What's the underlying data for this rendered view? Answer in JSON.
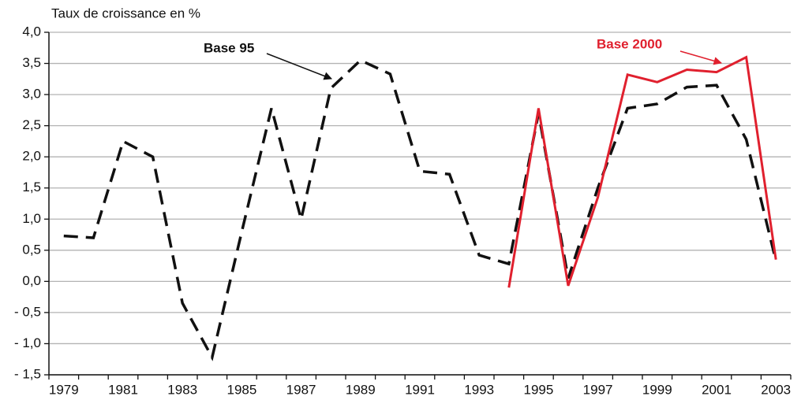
{
  "chart_data": {
    "type": "line",
    "y_axis_label": "Taux de croissance en %",
    "categories": [
      "1979",
      null,
      "1981",
      null,
      "1983",
      null,
      "1985",
      null,
      "1987",
      null,
      "1989",
      null,
      "1991",
      null,
      "1993",
      null,
      "1995",
      null,
      "1997",
      null,
      "1999",
      null,
      "2001",
      null,
      "2003"
    ],
    "series": [
      {
        "name": "Base 95",
        "color": "#111111",
        "dashed": true,
        "values": [
          0.73,
          0.7,
          2.25,
          2.0,
          -0.35,
          -1.22,
          0.8,
          2.78,
          1.0,
          3.1,
          3.55,
          3.33,
          1.77,
          1.72,
          0.42,
          0.28,
          2.7,
          0.05,
          1.5,
          2.78,
          2.85,
          3.12,
          3.15,
          2.28,
          0.33
        ]
      },
      {
        "name": "Base 2000",
        "color": "#e0202e",
        "dashed": false,
        "values": [
          null,
          null,
          null,
          null,
          null,
          null,
          null,
          null,
          null,
          null,
          null,
          null,
          null,
          null,
          null,
          -0.1,
          2.78,
          -0.07,
          1.35,
          3.32,
          3.2,
          3.4,
          3.36,
          3.6,
          0.35
        ]
      }
    ],
    "ylim": [
      -1.5,
      4.0
    ],
    "yticks": [
      {
        "value": -1.5,
        "label": "- 1,5"
      },
      {
        "value": -1.0,
        "label": "- 1,0"
      },
      {
        "value": -0.5,
        "label": "- 0,5"
      },
      {
        "value": 0.0,
        "label": "0,0"
      },
      {
        "value": 0.5,
        "label": "0,5"
      },
      {
        "value": 1.0,
        "label": "1,0"
      },
      {
        "value": 1.5,
        "label": "1,5"
      },
      {
        "value": 2.0,
        "label": "2,0"
      },
      {
        "value": 2.5,
        "label": "2,5"
      },
      {
        "value": 3.0,
        "label": "3,0"
      },
      {
        "value": 3.5,
        "label": "3,5"
      },
      {
        "value": 4.0,
        "label": "4,0"
      }
    ],
    "grid": true
  }
}
